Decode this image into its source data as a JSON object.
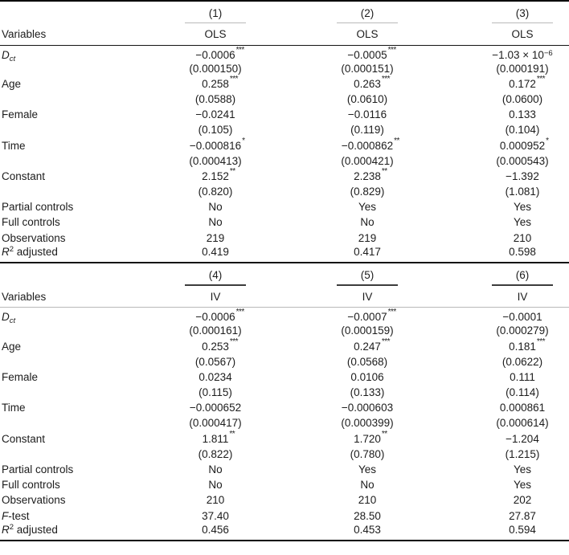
{
  "table": {
    "panels": [
      {
        "variables_label": "Variables",
        "columns": [
          {
            "num": "(1)",
            "method": "OLS"
          },
          {
            "num": "(2)",
            "method": "OLS"
          },
          {
            "num": "(3)",
            "method": "OLS"
          }
        ],
        "coef_rows": [
          {
            "label": [
              {
                "t": "D",
                "s": "i"
              },
              {
                "t": "ct",
                "s": "subi"
              }
            ],
            "cells": [
              {
                "v": "−0.0006",
                "stars": "***",
                "se": "(0.000150)"
              },
              {
                "v": "−0.0005",
                "stars": "***",
                "se": "(0.000151)"
              },
              {
                "v": "−1.03 × 10",
                "vsup": "−6",
                "stars": "",
                "se": "(0.000191)"
              }
            ]
          },
          {
            "label": [
              {
                "t": "Age",
                "s": "p"
              }
            ],
            "cells": [
              {
                "v": "0.258",
                "stars": "***",
                "se": "(0.0588)"
              },
              {
                "v": "0.263",
                "stars": "***",
                "se": "(0.0610)"
              },
              {
                "v": "0.172",
                "stars": "***",
                "se": "(0.0600)"
              }
            ]
          },
          {
            "label": [
              {
                "t": "Female",
                "s": "p"
              }
            ],
            "cells": [
              {
                "v": "−0.0241",
                "stars": "",
                "se": "(0.105)"
              },
              {
                "v": "−0.0116",
                "stars": "",
                "se": "(0.119)"
              },
              {
                "v": "0.133",
                "stars": "",
                "se": "(0.104)"
              }
            ]
          },
          {
            "label": [
              {
                "t": "Time",
                "s": "p"
              }
            ],
            "cells": [
              {
                "v": "−0.000816",
                "stars": "*",
                "se": "(0.000413)"
              },
              {
                "v": "−0.000862",
                "stars": "**",
                "se": "(0.000421)"
              },
              {
                "v": "0.000952",
                "stars": "*",
                "se": "(0.000543)"
              }
            ]
          },
          {
            "label": [
              {
                "t": "Constant",
                "s": "p"
              }
            ],
            "cells": [
              {
                "v": "2.152",
                "stars": "**",
                "se": "(0.820)"
              },
              {
                "v": "2.238",
                "stars": "**",
                "se": "(0.829)"
              },
              {
                "v": "−1.392",
                "stars": "",
                "se": "(1.081)"
              }
            ]
          }
        ],
        "info_rows": [
          {
            "label": [
              {
                "t": "Partial controls",
                "s": "p"
              }
            ],
            "values": [
              "No",
              "Yes",
              "Yes"
            ]
          },
          {
            "label": [
              {
                "t": "Full controls",
                "s": "p"
              }
            ],
            "values": [
              "No",
              "No",
              "Yes"
            ]
          },
          {
            "label": [
              {
                "t": "Observations",
                "s": "p"
              }
            ],
            "values": [
              "219",
              "219",
              "210"
            ]
          },
          {
            "label": [
              {
                "t": "R",
                "s": "i"
              },
              {
                "t": "2",
                "s": "sup"
              },
              {
                "t": " adjusted",
                "s": "p"
              }
            ],
            "values": [
              "0.419",
              "0.417",
              "0.598"
            ]
          }
        ]
      },
      {
        "variables_label": "Variables",
        "columns": [
          {
            "num": "(4)",
            "method": "IV"
          },
          {
            "num": "(5)",
            "method": "IV"
          },
          {
            "num": "(6)",
            "method": "IV"
          }
        ],
        "coef_rows": [
          {
            "label": [
              {
                "t": "D",
                "s": "i"
              },
              {
                "t": "ct",
                "s": "subi"
              }
            ],
            "cells": [
              {
                "v": "−0.0006",
                "stars": "***",
                "se": "(0.000161)"
              },
              {
                "v": "−0.0007",
                "stars": "***",
                "se": "(0.000159)"
              },
              {
                "v": "−0.0001",
                "stars": "",
                "se": "(0.000279)"
              }
            ]
          },
          {
            "label": [
              {
                "t": "Age",
                "s": "p"
              }
            ],
            "cells": [
              {
                "v": "0.253",
                "stars": "***",
                "se": "(0.0567)"
              },
              {
                "v": "0.247",
                "stars": "***",
                "se": "(0.0568)"
              },
              {
                "v": "0.181",
                "stars": "***",
                "se": "(0.0622)"
              }
            ]
          },
          {
            "label": [
              {
                "t": "Female",
                "s": "p"
              }
            ],
            "cells": [
              {
                "v": "0.0234",
                "stars": "",
                "se": "(0.115)"
              },
              {
                "v": "0.0106",
                "stars": "",
                "se": "(0.133)"
              },
              {
                "v": "0.111",
                "stars": "",
                "se": "(0.114)"
              }
            ]
          },
          {
            "label": [
              {
                "t": "Time",
                "s": "p"
              }
            ],
            "cells": [
              {
                "v": "−0.000652",
                "stars": "",
                "se": "(0.000417)"
              },
              {
                "v": "−0.000603",
                "stars": "",
                "se": "(0.000399)"
              },
              {
                "v": "0.000861",
                "stars": "",
                "se": "(0.000614)"
              }
            ]
          },
          {
            "label": [
              {
                "t": "Constant",
                "s": "p"
              }
            ],
            "cells": [
              {
                "v": "1.811",
                "stars": "**",
                "se": "(0.822)"
              },
              {
                "v": "1.720",
                "stars": "**",
                "se": "(0.780)"
              },
              {
                "v": "−1.204",
                "stars": "",
                "se": "(1.215)"
              }
            ]
          }
        ],
        "info_rows": [
          {
            "label": [
              {
                "t": "Partial controls",
                "s": "p"
              }
            ],
            "values": [
              "No",
              "Yes",
              "Yes"
            ]
          },
          {
            "label": [
              {
                "t": "Full controls",
                "s": "p"
              }
            ],
            "values": [
              "No",
              "No",
              "Yes"
            ]
          },
          {
            "label": [
              {
                "t": "Observations",
                "s": "p"
              }
            ],
            "values": [
              "210",
              "210",
              "202"
            ]
          },
          {
            "label": [
              {
                "t": "F",
                "s": "i"
              },
              {
                "t": "-test",
                "s": "p"
              }
            ],
            "values": [
              "37.40",
              "28.50",
              "27.87"
            ]
          },
          {
            "label": [
              {
                "t": "R",
                "s": "i"
              },
              {
                "t": "2",
                "s": "sup"
              },
              {
                "t": " adjusted",
                "s": "p"
              }
            ],
            "values": [
              "0.456",
              "0.453",
              "0.594"
            ]
          }
        ]
      }
    ]
  }
}
